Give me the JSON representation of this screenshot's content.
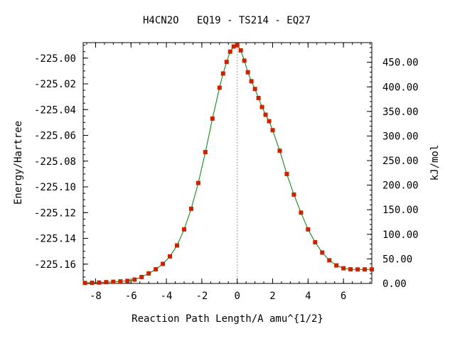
{
  "chart_data": {
    "type": "line",
    "title": "H4CN2O   EQ19 - TS214 - EQ27",
    "xlabel": "Reaction Path Length/A amu^{1/2}",
    "ylabel": "Energy/Hartree",
    "y2label": "kJ/mol",
    "xlim": [
      -8.7,
      7.6
    ],
    "ylim": [
      -225.175,
      -224.988
    ],
    "y2lim": [
      0.0,
      490.0
    ],
    "x_ticks": [
      "-8",
      "-6",
      "-4",
      "-2",
      "0",
      "2",
      "4",
      "6"
    ],
    "y_ticks": [
      "-225.00",
      "-225.02",
      "-225.04",
      "-225.06",
      "-225.08",
      "-225.10",
      "-225.12",
      "-225.14",
      "-225.16"
    ],
    "y2_ticks": [
      "450.00",
      "400.00",
      "350.00",
      "300.00",
      "250.00",
      "200.00",
      "150.00",
      "100.00",
      "50.00",
      "0.00"
    ],
    "grid": false,
    "ts_marker_x": 0.0,
    "line_color": "#008000",
    "marker_color": "#cc2200",
    "series": [
      {
        "x": [
          -8.6,
          -8.2,
          -7.8,
          -7.4,
          -7.0,
          -6.6,
          -6.2,
          -5.8,
          -5.4,
          -5.0,
          -4.6,
          -4.2,
          -3.8,
          -3.4,
          -3.0,
          -2.6,
          -2.2,
          -1.8,
          -1.4,
          -1.0,
          -0.8,
          -0.6,
          -0.4,
          -0.2,
          0.0,
          0.2,
          0.4,
          0.6,
          0.8,
          1.0,
          1.2,
          1.4,
          1.6,
          1.8,
          2.0,
          2.4,
          2.8,
          3.2,
          3.6,
          4.0,
          4.4,
          4.8,
          5.2,
          5.6,
          6.0,
          6.4,
          6.8,
          7.2,
          7.6
        ],
        "y": [
          -225.1746,
          -225.1745,
          -225.1743,
          -225.174,
          -225.1737,
          -225.1734,
          -225.173,
          -225.172,
          -225.17,
          -225.1672,
          -225.164,
          -225.1598,
          -225.154,
          -225.1455,
          -225.133,
          -225.117,
          -225.097,
          -225.073,
          -225.047,
          -225.023,
          -225.012,
          -225.003,
          -224.995,
          -224.991,
          -224.99,
          -224.994,
          -225.002,
          -225.011,
          -225.018,
          -225.024,
          -225.031,
          -225.038,
          -225.044,
          -225.049,
          -225.056,
          -225.072,
          -225.09,
          -225.106,
          -225.12,
          -225.133,
          -225.143,
          -225.151,
          -225.157,
          -225.161,
          -225.1632,
          -225.164,
          -225.1641,
          -225.1641,
          -225.1641
        ]
      }
    ]
  }
}
